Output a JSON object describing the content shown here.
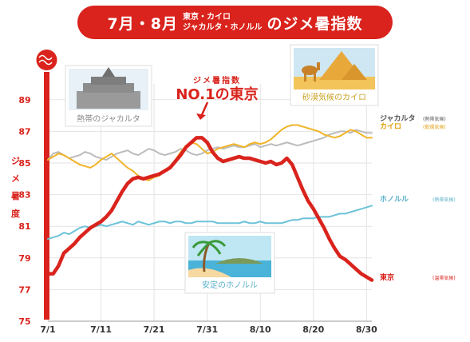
{
  "title": {
    "part1": "7月・8月",
    "part2_line1": "東京・カイロ",
    "part2_line2": "ジャカルタ・ホノルル",
    "part3": "のジメ暑指数"
  },
  "annotation": {
    "line1": "ジメ暑指数",
    "line2": "NO.1の東京"
  },
  "cards": {
    "jakarta": "熱帯のジャカルタ",
    "cairo": "砂漠気候のカイロ",
    "honolulu": "安定のホノルル"
  },
  "colors": {
    "tokyo": "#d9231c",
    "cairo": "#f0b428",
    "jakarta": "#bcbcbc",
    "honolulu": "#6cc3d8"
  },
  "chart_data": {
    "type": "line",
    "ylabel": "ジメ暑度",
    "ylim": [
      75,
      90
    ],
    "yticks": [
      75,
      77,
      79,
      81,
      83,
      85,
      87,
      89
    ],
    "xlim": [
      0,
      61
    ],
    "xtick_labels": [
      "7/1",
      "7/11",
      "7/21",
      "7/31",
      "8/10",
      "8/20",
      "8/30"
    ],
    "xtick_positions": [
      0,
      10,
      20,
      30,
      40,
      50,
      60
    ],
    "grid": true,
    "series": [
      {
        "name": "ジャカルタ",
        "sub": "(熱帯気候)",
        "key": "jakarta",
        "values": [
          85.2,
          85.6,
          85.7,
          85.5,
          85.3,
          85.4,
          85.5,
          85.7,
          85.6,
          85.4,
          85.3,
          85.2,
          85.4,
          85.6,
          85.7,
          85.8,
          85.6,
          85.5,
          85.7,
          85.9,
          85.8,
          85.6,
          85.5,
          85.6,
          85.7,
          85.9,
          85.8,
          85.6,
          85.5,
          85.6,
          85.8,
          85.9,
          86.0,
          85.9,
          86.0,
          86.1,
          86.0,
          86.0,
          86.1,
          86.2,
          86.0,
          86.1,
          86.2,
          86.1,
          86.2,
          86.3,
          86.2,
          86.1,
          86.2,
          86.3,
          86.4,
          86.5,
          86.6,
          86.8,
          86.9,
          87.0,
          87.0,
          86.9,
          87.1,
          87.0,
          86.9,
          86.9
        ]
      },
      {
        "name": "カイロ",
        "sub": "(乾燥気候)",
        "key": "cairo",
        "values": [
          85.2,
          85.4,
          85.6,
          85.5,
          85.3,
          85.1,
          84.9,
          84.8,
          84.7,
          84.9,
          85.2,
          85.4,
          85.6,
          85.3,
          85.0,
          84.7,
          84.5,
          84.2,
          84.0,
          83.9,
          84.1,
          84.2,
          84.5,
          84.8,
          85.2,
          85.7,
          86.1,
          86.3,
          86.2,
          85.9,
          85.6,
          85.7,
          85.9,
          86.0,
          86.1,
          86.2,
          86.1,
          86.0,
          86.2,
          86.3,
          86.2,
          86.3,
          86.5,
          86.8,
          87.1,
          87.3,
          87.4,
          87.4,
          87.3,
          87.2,
          87.1,
          87.0,
          86.8,
          86.7,
          86.6,
          86.7,
          86.9,
          87.1,
          87.0,
          86.8,
          86.6,
          86.6
        ]
      },
      {
        "name": "ホノルル",
        "sub": "(熱帯気候)",
        "key": "honolulu",
        "values": [
          80.2,
          80.3,
          80.4,
          80.6,
          80.5,
          80.7,
          80.9,
          81.0,
          80.9,
          81.0,
          81.1,
          81.0,
          81.1,
          81.2,
          81.3,
          81.2,
          81.1,
          81.3,
          81.2,
          81.1,
          81.2,
          81.3,
          81.3,
          81.2,
          81.3,
          81.3,
          81.2,
          81.2,
          81.3,
          81.3,
          81.3,
          81.3,
          81.2,
          81.2,
          81.2,
          81.2,
          81.2,
          81.3,
          81.2,
          81.2,
          81.3,
          81.2,
          81.2,
          81.2,
          81.2,
          81.3,
          81.4,
          81.4,
          81.5,
          81.5,
          81.5,
          81.6,
          81.6,
          81.6,
          81.7,
          81.8,
          81.8,
          81.9,
          82.0,
          82.1,
          82.2,
          82.3
        ]
      },
      {
        "name": "東京",
        "sub": "(温帯気候)",
        "key": "tokyo",
        "values": [
          78.0,
          78.0,
          78.5,
          79.3,
          79.6,
          79.9,
          80.3,
          80.6,
          80.9,
          81.1,
          81.3,
          81.6,
          82.0,
          82.6,
          83.2,
          83.7,
          84.0,
          84.1,
          84.0,
          84.1,
          84.2,
          84.3,
          84.5,
          84.7,
          85.1,
          85.5,
          86.0,
          86.3,
          86.6,
          86.6,
          86.3,
          85.7,
          85.3,
          85.1,
          85.2,
          85.3,
          85.4,
          85.3,
          85.3,
          85.2,
          85.1,
          85.0,
          85.1,
          84.9,
          85.0,
          85.3,
          84.9,
          84.1,
          83.3,
          82.6,
          82.1,
          81.5,
          80.9,
          80.2,
          79.6,
          79.1,
          78.9,
          78.6,
          78.3,
          78.0,
          77.8,
          77.6
        ]
      }
    ]
  }
}
